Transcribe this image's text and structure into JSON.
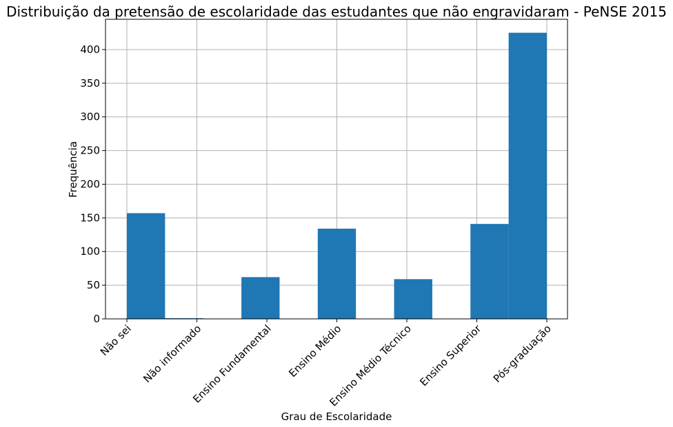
{
  "chart_data": {
    "type": "bar",
    "title": "Distribuição da pretensão de escolaridade das estudantes que não engravidaram - PeNSE 2015",
    "xlabel": "Grau de Escolaridade",
    "ylabel": "Frequência",
    "categories": [
      "Não sei",
      "Não informado",
      "Ensino Fundamental",
      "Ensino Médio",
      "Ensino Médio Técnico",
      "Ensino Superior",
      "Pós-graduação"
    ],
    "values": [
      157,
      1,
      62,
      134,
      59,
      141,
      425
    ],
    "yticks": [
      0,
      50,
      100,
      150,
      200,
      250,
      300,
      350,
      400
    ],
    "ylim": [
      0,
      445
    ],
    "grid": true,
    "bar_color": "#1f77b4"
  }
}
